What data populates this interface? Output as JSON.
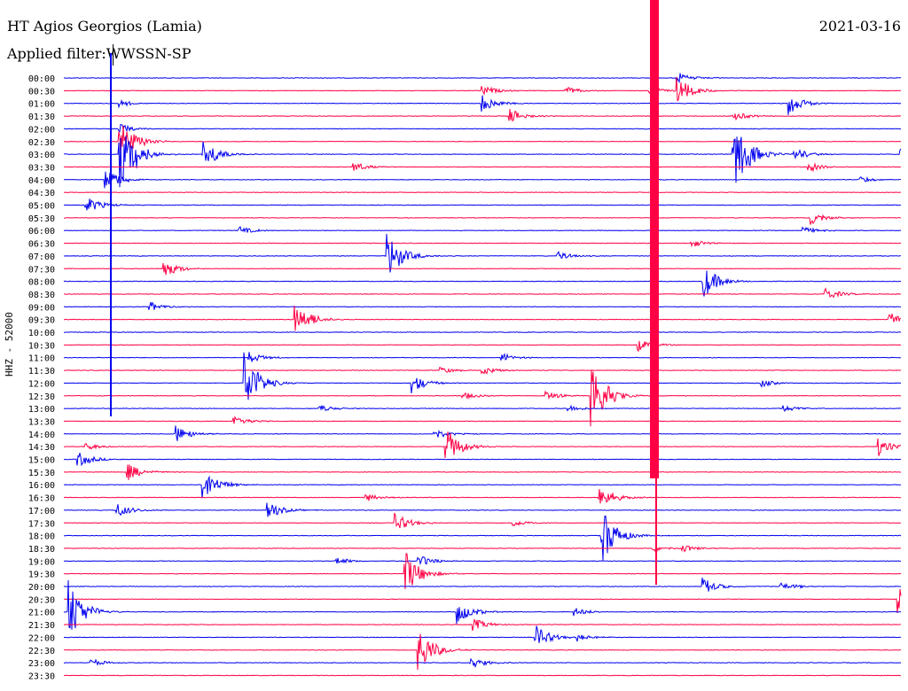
{
  "header": {
    "station": "HT Agios Georgios (Lamia)",
    "date": "2021-03-16",
    "filter_label": "Applied filter:",
    "filter_value": "WWSSN-SP",
    "channel": "HHZ - 52000"
  },
  "colors": {
    "blue": "#0000ee",
    "red": "#ff0044",
    "text": "#000000",
    "background": "#ffffff"
  },
  "chart_data": {
    "type": "helicorder",
    "title": "HT Agios Georgios (Lamia)",
    "date": "2021-03-16",
    "channel": "HHZ - 52000",
    "filter": "WWSSN-SP",
    "rows": [
      "00:00",
      "00:30",
      "01:00",
      "01:30",
      "02:00",
      "02:30",
      "03:00",
      "03:30",
      "04:00",
      "04:30",
      "05:00",
      "05:30",
      "06:00",
      "06:30",
      "07:00",
      "07:30",
      "08:00",
      "08:30",
      "09:00",
      "09:30",
      "10:00",
      "10:30",
      "11:00",
      "11:30",
      "12:00",
      "12:30",
      "13:00",
      "13:30",
      "14:00",
      "14:30",
      "15:00",
      "15:30",
      "16:00",
      "16:30",
      "17:00",
      "17:30",
      "18:00",
      "18:30",
      "19:00",
      "19:30",
      "20:00",
      "20:30",
      "21:00",
      "21:30",
      "22:00",
      "22:30",
      "23:00",
      "23:30"
    ],
    "row_colors": [
      "blue",
      "red"
    ],
    "events": [
      {
        "row": 0,
        "minute": 22,
        "amp": 0.9
      },
      {
        "row": 1,
        "minute": 22,
        "amp": 2.2
      },
      {
        "row": 2,
        "minute": 2,
        "amp": 0.6
      },
      {
        "row": 1,
        "minute": 15,
        "amp": 0.9
      },
      {
        "row": 2,
        "minute": 15,
        "amp": 1.4
      },
      {
        "row": 3,
        "minute": 16,
        "amp": 1.2
      },
      {
        "row": 1,
        "minute": 18,
        "amp": 0.7
      },
      {
        "row": 1,
        "minute": 21,
        "amp": 0.7
      },
      {
        "row": 2,
        "minute": 26,
        "amp": 1.8
      },
      {
        "row": 3,
        "minute": 24,
        "amp": 0.8
      },
      {
        "row": 4,
        "minute": 2,
        "amp": 0.8
      },
      {
        "row": 5,
        "minute": 2,
        "amp": 4.0
      },
      {
        "row": 6,
        "minute": 2,
        "amp": 6.0
      },
      {
        "row": 6,
        "minute": 24,
        "amp": 7.0
      },
      {
        "row": 6,
        "minute": 30,
        "amp": 1.2
      },
      {
        "row": 6,
        "minute": 2.6,
        "amp": 1.2
      },
      {
        "row": 6,
        "minute": 5,
        "amp": 2.5
      },
      {
        "row": 6,
        "minute": 26.2,
        "amp": 1.0
      },
      {
        "row": 7,
        "minute": 26.7,
        "amp": 0.8
      },
      {
        "row": 7,
        "minute": 10.4,
        "amp": 0.8
      },
      {
        "row": 8,
        "minute": 1.5,
        "amp": 2.0
      },
      {
        "row": 8,
        "minute": 28.5,
        "amp": 0.6
      },
      {
        "row": 10,
        "minute": 0.8,
        "amp": 1.5
      },
      {
        "row": 11,
        "minute": 26.8,
        "amp": 1.0
      },
      {
        "row": 12,
        "minute": 6.3,
        "amp": 0.7
      },
      {
        "row": 12,
        "minute": 26.5,
        "amp": 0.6
      },
      {
        "row": 13,
        "minute": 22.5,
        "amp": 0.7
      },
      {
        "row": 14,
        "minute": 11.6,
        "amp": 4.0
      },
      {
        "row": 14,
        "minute": 17.7,
        "amp": 0.7
      },
      {
        "row": 15,
        "minute": 3.6,
        "amp": 1.4
      },
      {
        "row": 16,
        "minute": 22.9,
        "amp": 3.0
      },
      {
        "row": 17,
        "minute": 27.3,
        "amp": 1.0
      },
      {
        "row": 18,
        "minute": 3.1,
        "amp": 0.8
      },
      {
        "row": 19,
        "minute": 8.3,
        "amp": 3.0
      },
      {
        "row": 19,
        "minute": 29.6,
        "amp": 1.4
      },
      {
        "row": 21,
        "minute": 20.6,
        "amp": 1.0
      },
      {
        "row": 22,
        "minute": 6.6,
        "amp": 1.0
      },
      {
        "row": 22,
        "minute": 15.7,
        "amp": 0.7
      },
      {
        "row": 23,
        "minute": 13.5,
        "amp": 0.6
      },
      {
        "row": 23,
        "minute": 15,
        "amp": 0.8
      },
      {
        "row": 24,
        "minute": 6.5,
        "amp": 5.0
      },
      {
        "row": 24,
        "minute": 12.5,
        "amp": 1.5
      },
      {
        "row": 24,
        "minute": 25.0,
        "amp": 0.6
      },
      {
        "row": 25,
        "minute": 14.3,
        "amp": 0.6
      },
      {
        "row": 25,
        "minute": 17.3,
        "amp": 0.7
      },
      {
        "row": 25,
        "minute": 18.9,
        "amp": 6.0
      },
      {
        "row": 26,
        "minute": 18.1,
        "amp": 0.6
      },
      {
        "row": 26,
        "minute": 25.8,
        "amp": 0.6
      },
      {
        "row": 26,
        "minute": 9.2,
        "amp": 0.6
      },
      {
        "row": 27,
        "minute": 6.1,
        "amp": 1.0
      },
      {
        "row": 28,
        "minute": 4.0,
        "amp": 1.5
      },
      {
        "row": 28,
        "minute": 13.3,
        "amp": 0.8
      },
      {
        "row": 29,
        "minute": 13.7,
        "amp": 3.0
      },
      {
        "row": 29,
        "minute": 0.8,
        "amp": 0.6
      },
      {
        "row": 29,
        "minute": 29.2,
        "amp": 1.5
      },
      {
        "row": 30,
        "minute": 0.5,
        "amp": 1.3
      },
      {
        "row": 31,
        "minute": 2.3,
        "amp": 1.4
      },
      {
        "row": 32,
        "minute": 5.0,
        "amp": 2.8
      },
      {
        "row": 33,
        "minute": 10.8,
        "amp": 0.7
      },
      {
        "row": 33,
        "minute": 19.2,
        "amp": 2.0
      },
      {
        "row": 34,
        "minute": 1.9,
        "amp": 1.2
      },
      {
        "row": 34,
        "minute": 7.3,
        "amp": 1.5
      },
      {
        "row": 35,
        "minute": 11.9,
        "amp": 1.5
      },
      {
        "row": 35,
        "minute": 16.1,
        "amp": 0.6
      },
      {
        "row": 36,
        "minute": 19.3,
        "amp": 4.5
      },
      {
        "row": 37,
        "minute": 21.1,
        "amp": 0.6
      },
      {
        "row": 37,
        "minute": 22.2,
        "amp": 0.6
      },
      {
        "row": 38,
        "minute": 12.7,
        "amp": 1.0
      },
      {
        "row": 38,
        "minute": 9.8,
        "amp": 0.6
      },
      {
        "row": 39,
        "minute": 12.2,
        "amp": 4.0
      },
      {
        "row": 40,
        "minute": 22.9,
        "amp": 1.4
      },
      {
        "row": 40,
        "minute": 25.7,
        "amp": 0.8
      },
      {
        "row": 41,
        "minute": 29.9,
        "amp": 3.0
      },
      {
        "row": 42,
        "minute": 0.2,
        "amp": 5.0
      },
      {
        "row": 42,
        "minute": 14.1,
        "amp": 2.0
      },
      {
        "row": 42,
        "minute": 18.3,
        "amp": 0.7
      },
      {
        "row": 43,
        "minute": 14.7,
        "amp": 1.0
      },
      {
        "row": 44,
        "minute": 16.9,
        "amp": 2.0
      },
      {
        "row": 44,
        "minute": 18.4,
        "amp": 0.6
      },
      {
        "row": 45,
        "minute": 12.7,
        "amp": 4.0
      },
      {
        "row": 46,
        "minute": 14.6,
        "amp": 1.0
      },
      {
        "row": 46,
        "minute": 1.0,
        "amp": 0.6
      }
    ]
  }
}
